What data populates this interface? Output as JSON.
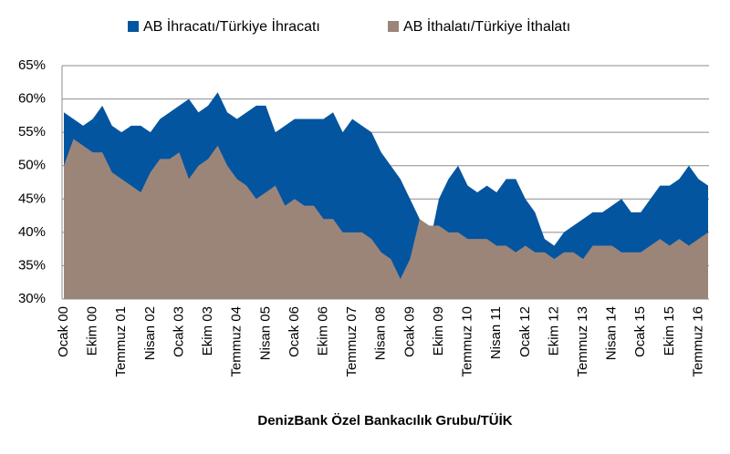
{
  "chart_data": {
    "type": "area",
    "xlabel": "DenizBank Özel Bankacılık Grubu/TÜİK",
    "categories": [
      "Ocak 00",
      null,
      null,
      "Ekim 00",
      null,
      null,
      "Temmuz 01",
      null,
      null,
      "Nisan 02",
      null,
      null,
      "Ocak 03",
      null,
      null,
      "Ekim 03",
      null,
      null,
      "Temmuz 04",
      null,
      null,
      "Nisan 05",
      null,
      null,
      "Ocak 06",
      null,
      null,
      "Ekim 06",
      null,
      null,
      "Temmuz 07",
      null,
      null,
      "Nisan 08",
      null,
      null,
      "Ocak 09",
      null,
      null,
      "Ekim 09",
      null,
      null,
      "Temmuz 10",
      null,
      null,
      "Nisan 11",
      null,
      null,
      "Ocak 12",
      null,
      null,
      "Ekim 12",
      null,
      null,
      "Temmuz 13",
      null,
      null,
      "Nisan 14",
      null,
      null,
      "Ocak 15",
      null,
      null,
      "Ekim 15",
      null,
      null,
      "Temmuz 16",
      null
    ],
    "series": [
      {
        "name": "AB İhracatı/Türkiye İhracatı",
        "color": "#0455a0",
        "values": [
          58,
          57,
          56,
          57,
          59,
          56,
          55,
          56,
          56,
          55,
          57,
          58,
          59,
          60,
          58,
          59,
          61,
          58,
          57,
          58,
          59,
          59,
          55,
          56,
          57,
          57,
          57,
          57,
          58,
          55,
          57,
          56,
          55,
          52,
          50,
          48,
          45,
          42,
          38,
          45,
          48,
          50,
          47,
          46,
          47,
          46,
          48,
          48,
          45,
          43,
          39,
          38,
          40,
          41,
          42,
          43,
          43,
          44,
          45,
          43,
          43,
          45,
          47,
          47,
          48,
          50,
          48,
          47
        ]
      },
      {
        "name": "AB İthalatı/Türkiye İthalatı",
        "color": "#9b8579",
        "values": [
          50,
          54,
          53,
          52,
          52,
          49,
          48,
          47,
          46,
          49,
          51,
          51,
          52,
          48,
          50,
          51,
          53,
          50,
          48,
          47,
          45,
          46,
          47,
          44,
          45,
          44,
          44,
          42,
          42,
          40,
          40,
          40,
          39,
          37,
          36,
          33,
          36,
          42,
          41,
          41,
          40,
          40,
          39,
          39,
          39,
          38,
          38,
          37,
          38,
          37,
          37,
          36,
          37,
          37,
          36,
          38,
          38,
          38,
          37,
          37,
          37,
          38,
          39,
          38,
          39,
          38,
          39,
          40
        ]
      }
    ],
    "ylim": [
      30,
      65
    ],
    "yticks": [
      {
        "value": 30,
        "label": "30%"
      },
      {
        "value": 35,
        "label": "35%"
      },
      {
        "value": 40,
        "label": "40%"
      },
      {
        "value": 45,
        "label": "45%"
      },
      {
        "value": 50,
        "label": "50%"
      },
      {
        "value": 55,
        "label": "55%"
      },
      {
        "value": 60,
        "label": "60%"
      },
      {
        "value": 65,
        "label": "65%"
      }
    ],
    "grid": true
  }
}
